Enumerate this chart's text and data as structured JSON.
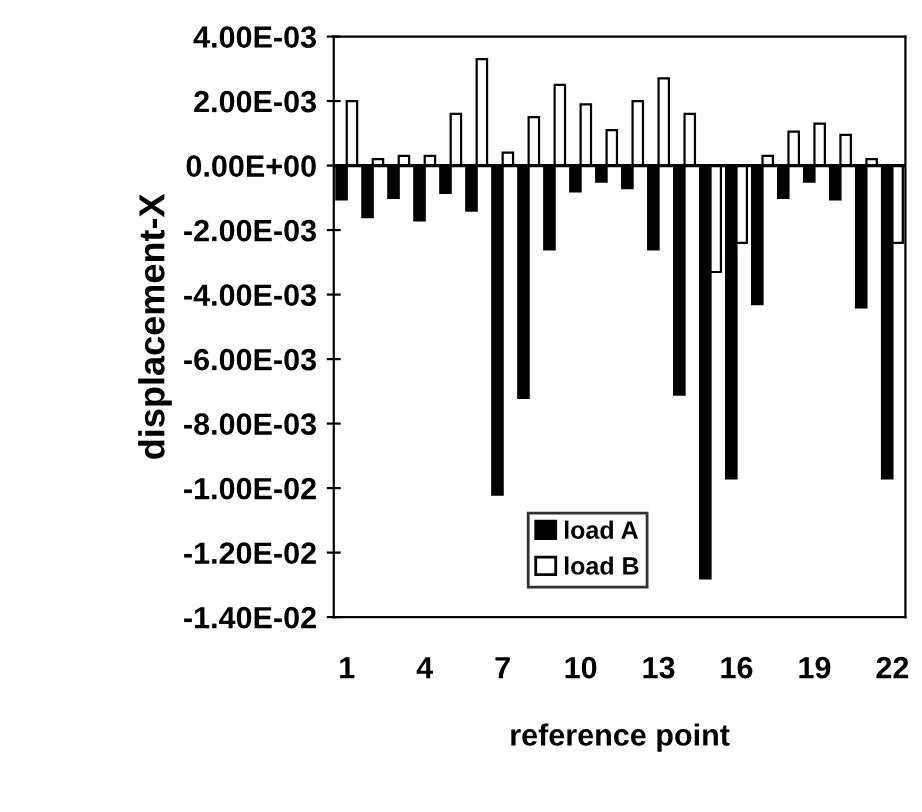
{
  "chart_data": {
    "type": "bar",
    "xlabel": "reference point",
    "ylabel": "displacement-X",
    "categories": [
      "1",
      null,
      null,
      "4",
      null,
      null,
      "7",
      null,
      null,
      "10",
      null,
      null,
      "13",
      null,
      null,
      "16",
      null,
      null,
      "19",
      null,
      null,
      "22"
    ],
    "series": [
      {
        "name": "load A",
        "color": "#000000",
        "values": [
          -0.00105,
          -0.0016,
          -0.001,
          -0.0017,
          -0.00085,
          -0.0014,
          -0.0102,
          -0.0072,
          -0.0026,
          -0.0008,
          -0.0005,
          -0.0007,
          -0.0026,
          -0.0071,
          -0.0128,
          -0.0097,
          -0.0043,
          -0.001,
          -0.0005,
          -0.00105,
          -0.0044,
          -0.0097
        ]
      },
      {
        "name": "load B",
        "color": "#ffffff",
        "values": [
          0.002,
          0.0002,
          0.0003,
          0.0003,
          0.0016,
          0.0033,
          0.0004,
          0.0015,
          0.0025,
          0.0019,
          0.0011,
          0.002,
          0.0027,
          0.0016,
          -0.0033,
          -0.0024,
          0.0003,
          0.00105,
          0.0013,
          0.00095,
          0.0002,
          -0.0024
        ]
      }
    ],
    "ylim": [
      -0.014,
      0.004
    ],
    "yticks": [
      {
        "value": 0.004,
        "label": "4.00E-03"
      },
      {
        "value": 0.002,
        "label": "2.00E-03"
      },
      {
        "value": 0,
        "label": "0.00E+00"
      },
      {
        "value": -0.002,
        "label": "-2.00E-03"
      },
      {
        "value": -0.004,
        "label": "-4.00E-03"
      },
      {
        "value": -0.006,
        "label": "-6.00E-03"
      },
      {
        "value": -0.008,
        "label": "-8.00E-03"
      },
      {
        "value": -0.01,
        "label": "-1.00E-02"
      },
      {
        "value": -0.012,
        "label": "-1.20E-02"
      },
      {
        "value": -0.014,
        "label": "-1.40E-02"
      }
    ],
    "ref_lines": [
      {
        "axis": "y",
        "value": 0,
        "color": "#000000"
      }
    ],
    "legend": "bottom",
    "grid": false
  }
}
